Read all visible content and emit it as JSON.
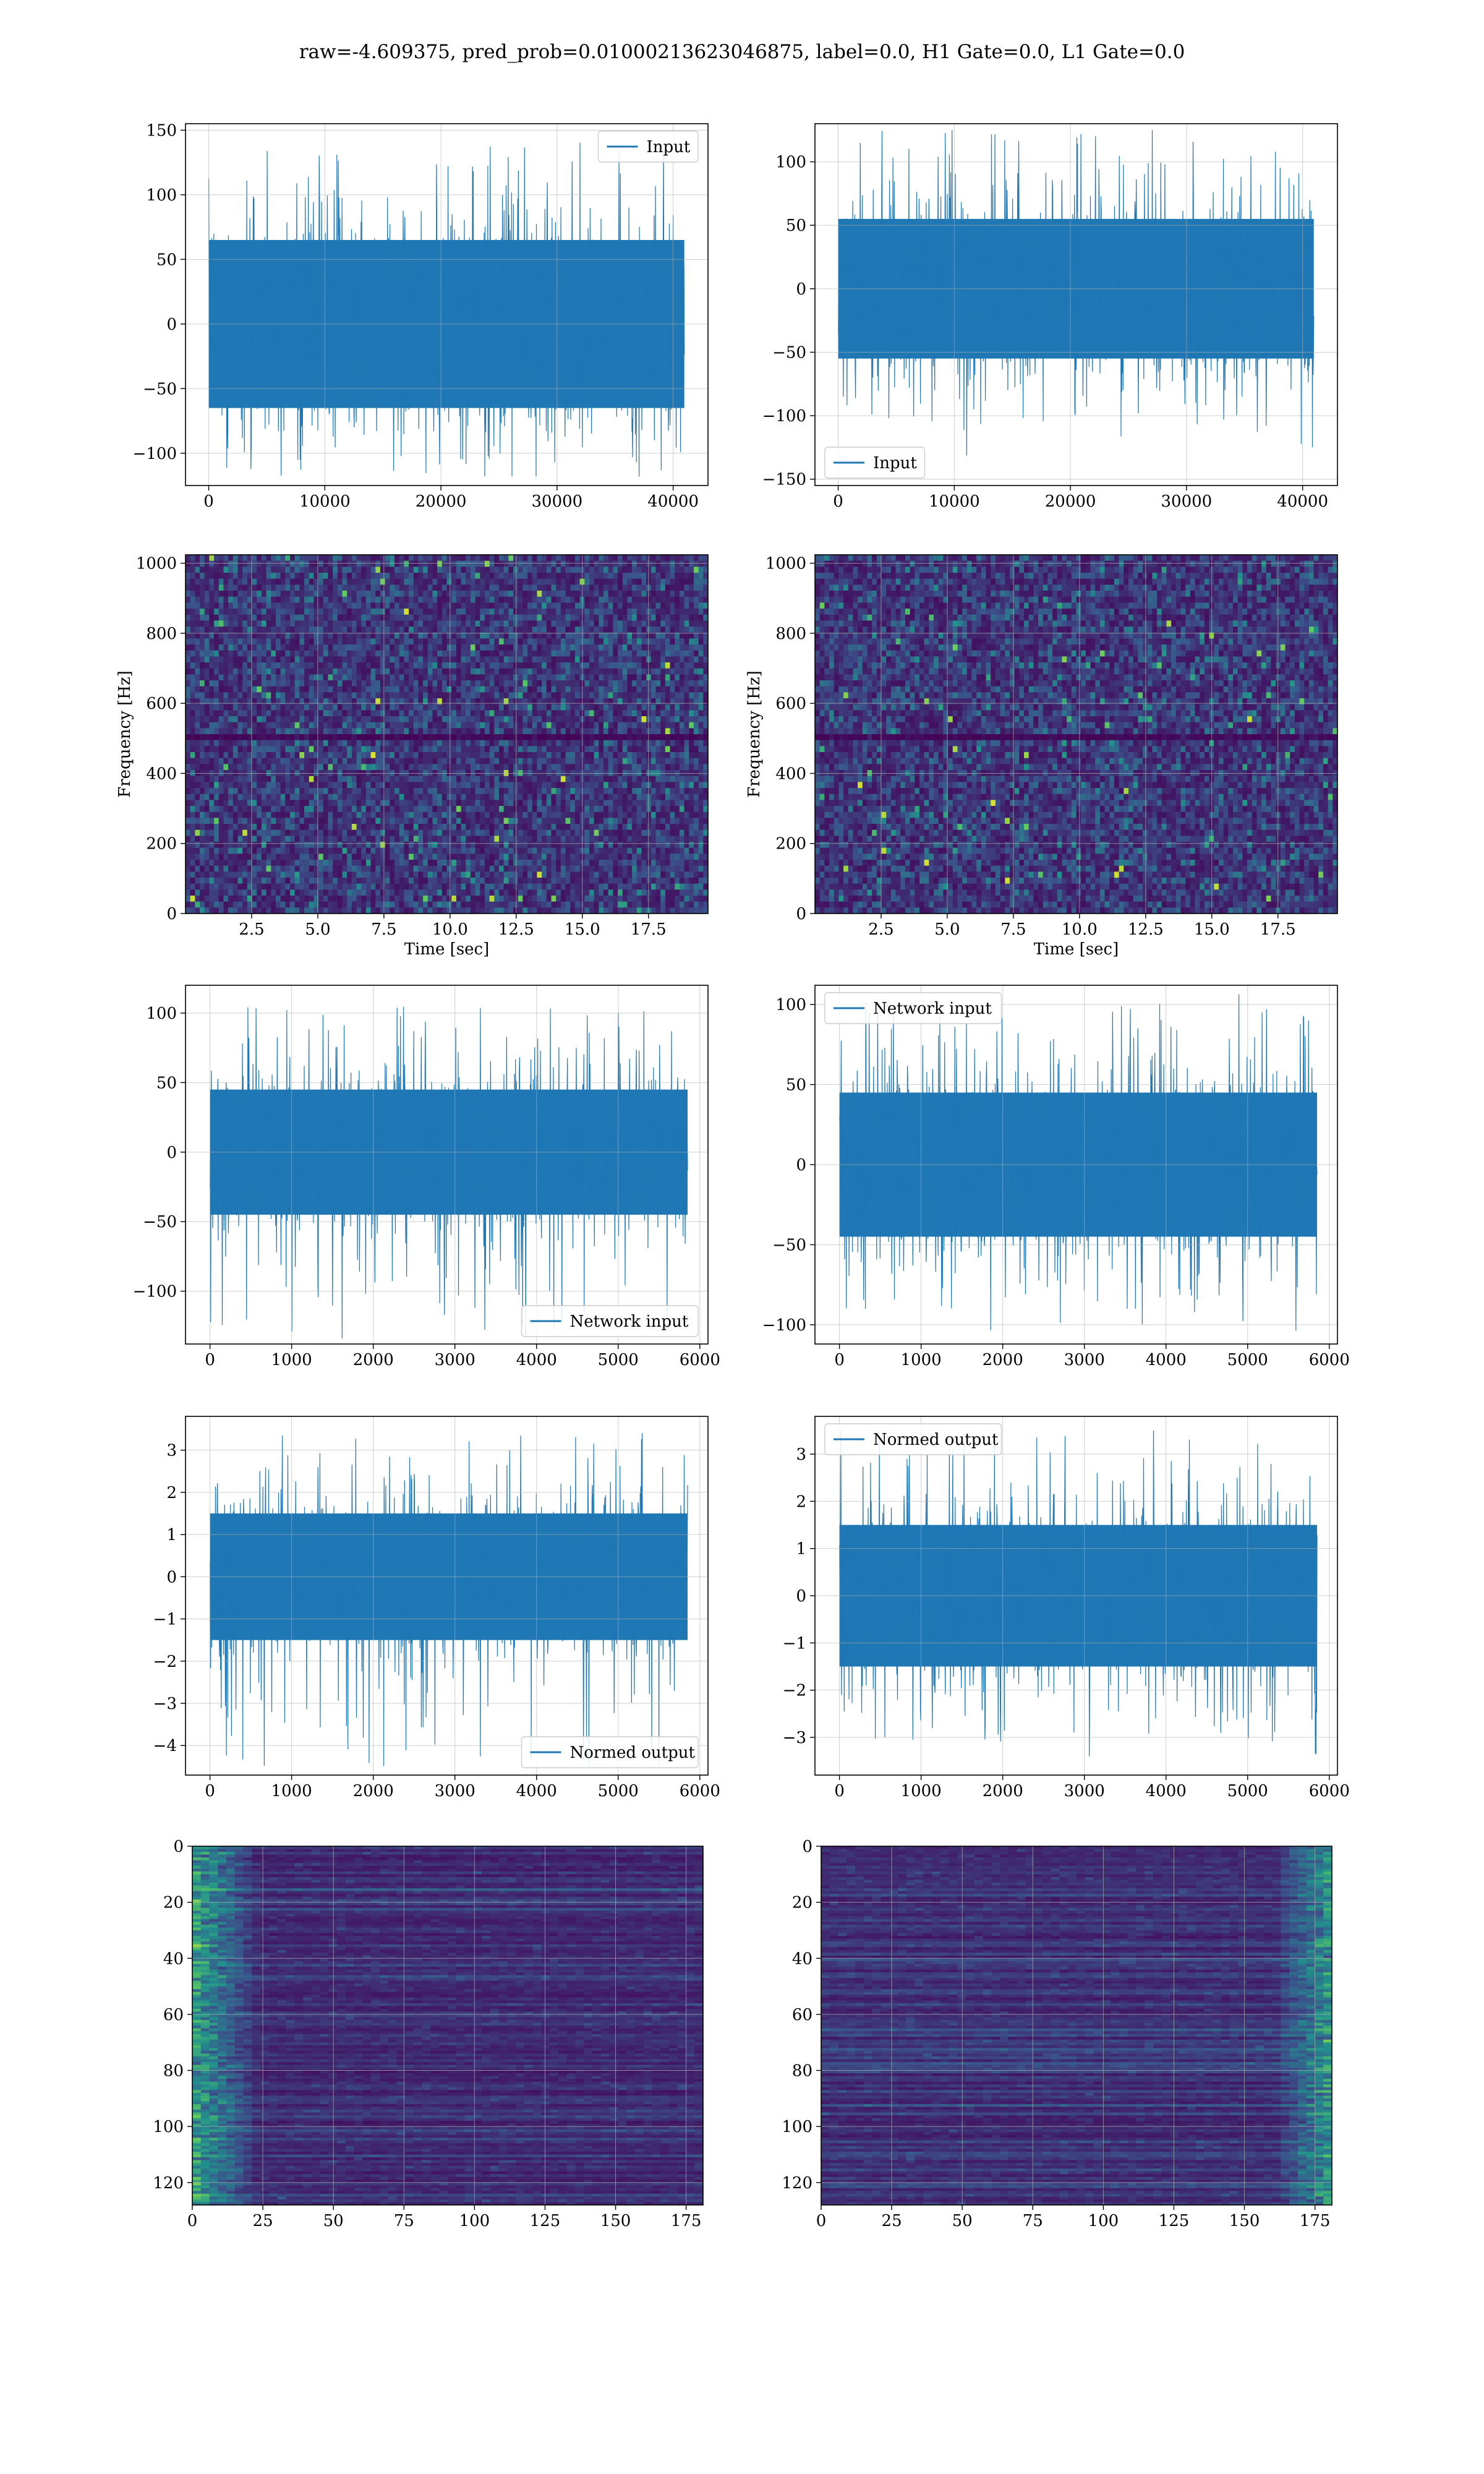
{
  "figure": {
    "title": "raw=-4.609375, pred_prob=0.01000213623046875, label=0.0, H1 Gate=0.0, L1 Gate=0.0"
  },
  "colors": {
    "series": "#1f77b4",
    "grid": "#b0b0b0",
    "viridis_dark": "#440154",
    "viridis_mid": "#31688e",
    "viridis_green": "#35b779",
    "viridis_yellow": "#fde725"
  },
  "chart_data": [
    {
      "id": "input-left",
      "type": "line",
      "legend": "Input",
      "legend_loc": "upper right",
      "xlim": [
        -2000,
        43000
      ],
      "ylim": [
        -125,
        155
      ],
      "xticks": [
        0,
        10000,
        20000,
        30000,
        40000
      ],
      "xticklabels": [
        "0",
        "10000",
        "20000",
        "30000",
        "40000"
      ],
      "yticks": [
        -100,
        -50,
        0,
        50,
        100,
        150
      ],
      "yticklabels": [
        "−100",
        "−50",
        "0",
        "50",
        "100",
        "150"
      ],
      "x_range": [
        0,
        40960
      ],
      "core_band": [
        -65,
        65
      ],
      "envelope": [
        -118,
        143
      ],
      "grid": true
    },
    {
      "id": "input-right",
      "type": "line",
      "legend": "Input",
      "legend_loc": "lower left",
      "xlim": [
        -2000,
        43000
      ],
      "ylim": [
        -155,
        130
      ],
      "xticks": [
        0,
        10000,
        20000,
        30000,
        40000
      ],
      "xticklabels": [
        "0",
        "10000",
        "20000",
        "30000",
        "40000"
      ],
      "yticks": [
        -150,
        -100,
        -50,
        0,
        50,
        100
      ],
      "yticklabels": [
        "−150",
        "−100",
        "−50",
        "0",
        "50",
        "100"
      ],
      "x_range": [
        0,
        40960
      ],
      "core_band": [
        -55,
        55
      ],
      "envelope": [
        -140,
        125
      ],
      "grid": true
    },
    {
      "id": "spectrogram-left",
      "type": "heatmap",
      "xlabel": "Time [sec]",
      "ylabel": "Frequency [Hz]",
      "xlim": [
        0,
        19.75
      ],
      "ylim": [
        0,
        1024
      ],
      "xticks": [
        2.5,
        5.0,
        7.5,
        10.0,
        12.5,
        15.0,
        17.5
      ],
      "xticklabels": [
        "2.5",
        "5.0",
        "7.5",
        "10.0",
        "12.5",
        "15.0",
        "17.5"
      ],
      "yticks": [
        0,
        200,
        400,
        600,
        800,
        1000
      ],
      "yticklabels": [
        "0",
        "200",
        "400",
        "600",
        "800",
        "1000"
      ],
      "dark_band_hz": [
        490,
        512
      ],
      "grid": true
    },
    {
      "id": "spectrogram-right",
      "type": "heatmap",
      "xlabel": "Time [sec]",
      "ylabel": "Frequency [Hz]",
      "xlim": [
        0,
        19.75
      ],
      "ylim": [
        0,
        1024
      ],
      "xticks": [
        2.5,
        5.0,
        7.5,
        10.0,
        12.5,
        15.0,
        17.5
      ],
      "xticklabels": [
        "2.5",
        "5.0",
        "7.5",
        "10.0",
        "12.5",
        "15.0",
        "17.5"
      ],
      "yticks": [
        0,
        200,
        400,
        600,
        800,
        1000
      ],
      "yticklabels": [
        "0",
        "200",
        "400",
        "600",
        "800",
        "1000"
      ],
      "dark_band_hz": [
        490,
        512
      ],
      "grid": true
    },
    {
      "id": "network-input-left",
      "type": "line",
      "legend": "Network input",
      "legend_loc": "lower right",
      "xlim": [
        -300,
        6100
      ],
      "ylim": [
        -138,
        120
      ],
      "xticks": [
        0,
        1000,
        2000,
        3000,
        4000,
        5000,
        6000
      ],
      "xticklabels": [
        "0",
        "1000",
        "2000",
        "3000",
        "4000",
        "5000",
        "6000"
      ],
      "yticks": [
        -100,
        -50,
        0,
        50,
        100
      ],
      "yticklabels": [
        "−100",
        "−50",
        "0",
        "50",
        "100"
      ],
      "x_range": [
        0,
        5850
      ],
      "core_band": [
        -45,
        45
      ],
      "envelope": [
        -136,
        106
      ],
      "grid": true
    },
    {
      "id": "network-input-right",
      "type": "line",
      "legend": "Network input",
      "legend_loc": "upper left",
      "xlim": [
        -300,
        6100
      ],
      "ylim": [
        -112,
        112
      ],
      "xticks": [
        0,
        1000,
        2000,
        3000,
        4000,
        5000,
        6000
      ],
      "xticklabels": [
        "0",
        "1000",
        "2000",
        "3000",
        "4000",
        "5000",
        "6000"
      ],
      "yticks": [
        -100,
        -50,
        0,
        50,
        100
      ],
      "yticklabels": [
        "−100",
        "−50",
        "0",
        "50",
        "100"
      ],
      "x_range": [
        0,
        5850
      ],
      "core_band": [
        -45,
        45
      ],
      "envelope": [
        -105,
        108
      ],
      "grid": true
    },
    {
      "id": "normed-output-left",
      "type": "line",
      "legend": "Normed output",
      "legend_loc": "lower right",
      "xlim": [
        -300,
        6100
      ],
      "ylim": [
        -4.7,
        3.8
      ],
      "xticks": [
        0,
        1000,
        2000,
        3000,
        4000,
        5000,
        6000
      ],
      "xticklabels": [
        "0",
        "1000",
        "2000",
        "3000",
        "4000",
        "5000",
        "6000"
      ],
      "yticks": [
        -4,
        -3,
        -2,
        -1,
        0,
        1,
        2,
        3
      ],
      "yticklabels": [
        "−4",
        "−3",
        "−2",
        "−1",
        "0",
        "1",
        "2",
        "3"
      ],
      "x_range": [
        0,
        5850
      ],
      "core_band": [
        -1.5,
        1.5
      ],
      "envelope": [
        -4.5,
        3.4
      ],
      "grid": true
    },
    {
      "id": "normed-output-right",
      "type": "line",
      "legend": "Normed output",
      "legend_loc": "upper left",
      "xlim": [
        -300,
        6100
      ],
      "ylim": [
        -3.8,
        3.8
      ],
      "xticks": [
        0,
        1000,
        2000,
        3000,
        4000,
        5000,
        6000
      ],
      "xticklabels": [
        "0",
        "1000",
        "2000",
        "3000",
        "4000",
        "5000",
        "6000"
      ],
      "yticks": [
        -3,
        -2,
        -1,
        0,
        1,
        2,
        3
      ],
      "yticklabels": [
        "−3",
        "−2",
        "−1",
        "0",
        "1",
        "2",
        "3"
      ],
      "x_range": [
        0,
        5850
      ],
      "core_band": [
        -1.5,
        1.5
      ],
      "envelope": [
        -3.4,
        3.5
      ],
      "grid": true
    },
    {
      "id": "feature-map-left",
      "type": "heatmap",
      "xlim": [
        0,
        181
      ],
      "ylim": [
        128,
        0
      ],
      "xticks": [
        0,
        25,
        50,
        75,
        100,
        125,
        150,
        175
      ],
      "xticklabels": [
        "0",
        "25",
        "50",
        "75",
        "100",
        "125",
        "150",
        "175"
      ],
      "yticks": [
        0,
        20,
        40,
        60,
        80,
        100,
        120
      ],
      "yticklabels": [
        "0",
        "20",
        "40",
        "60",
        "80",
        "100",
        "120"
      ],
      "bright_side": "left",
      "grid": true
    },
    {
      "id": "feature-map-right",
      "type": "heatmap",
      "xlim": [
        0,
        181
      ],
      "ylim": [
        128,
        0
      ],
      "xticks": [
        0,
        25,
        50,
        75,
        100,
        125,
        150,
        175
      ],
      "xticklabels": [
        "0",
        "25",
        "50",
        "75",
        "100",
        "125",
        "150",
        "175"
      ],
      "yticks": [
        0,
        20,
        40,
        60,
        80,
        100,
        120
      ],
      "yticklabels": [
        "0",
        "20",
        "40",
        "60",
        "80",
        "100",
        "120"
      ],
      "bright_side": "right",
      "grid": true
    }
  ]
}
